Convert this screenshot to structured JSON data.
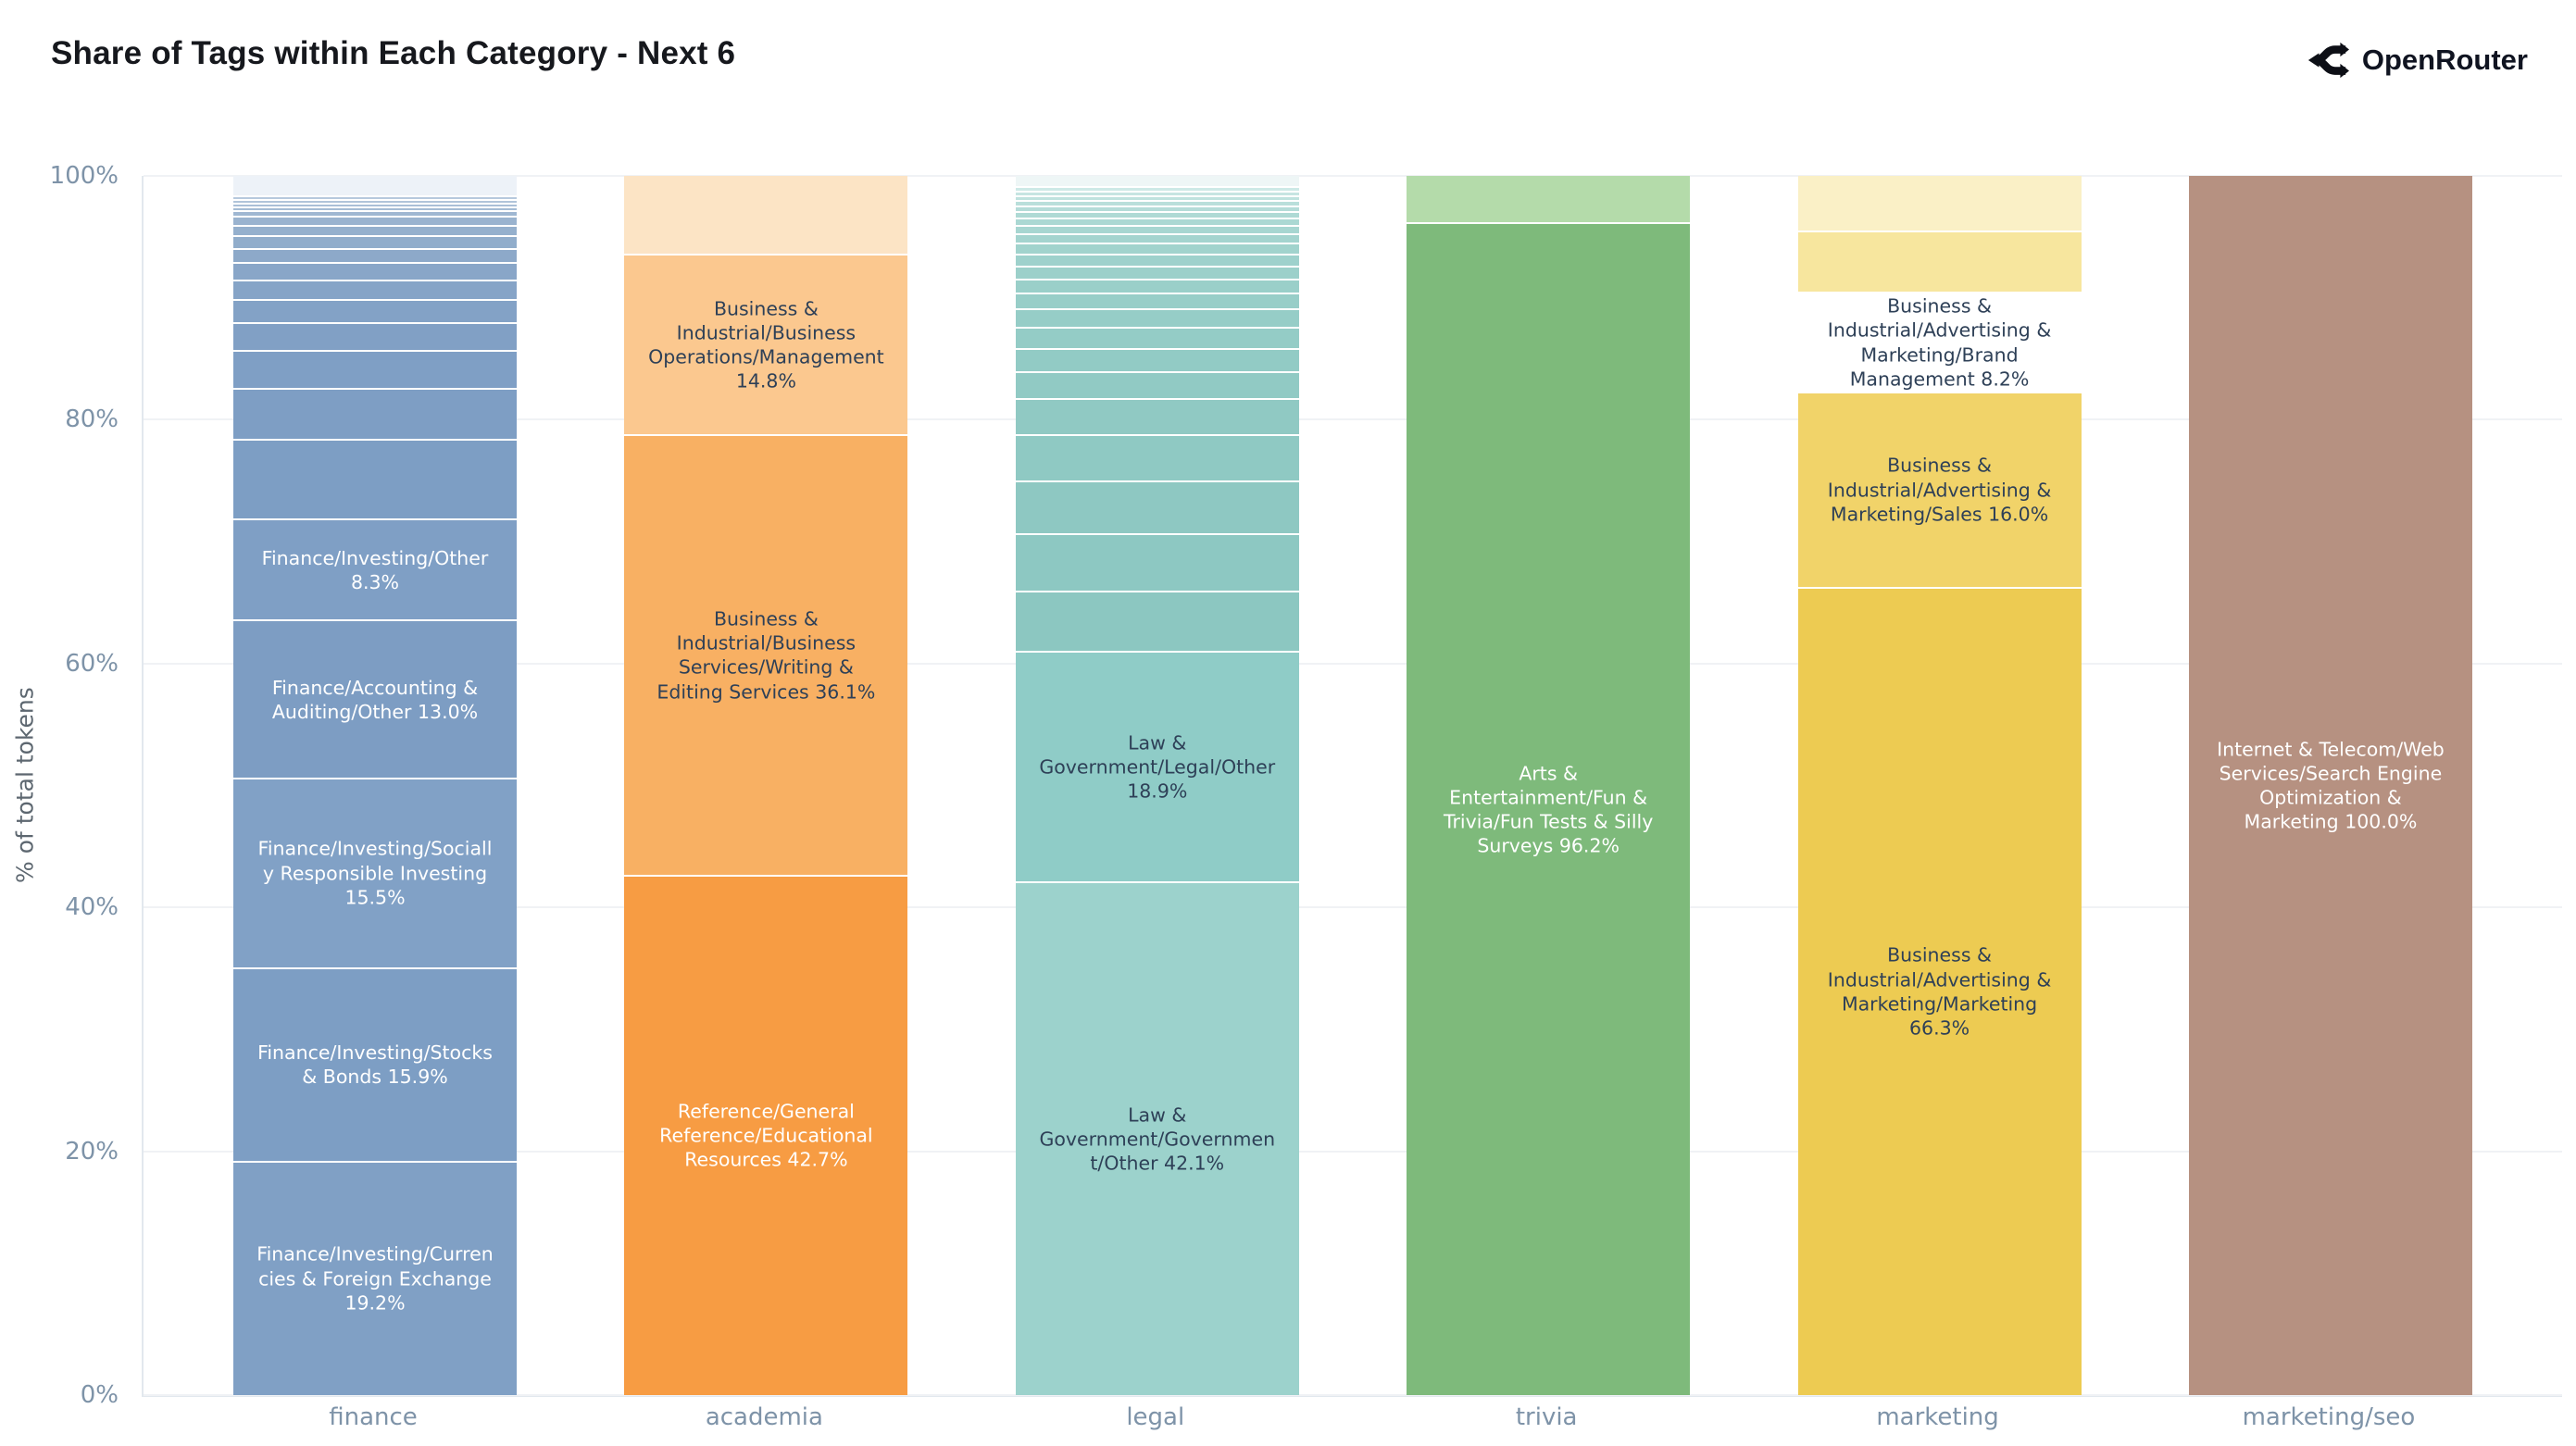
{
  "header": {
    "title": "Share of Tags within Each Category - Next 6",
    "brand": "OpenRouter"
  },
  "chart_data": {
    "type": "bar",
    "stacked": true,
    "normalized_percent": true,
    "title": "Share of Tags within Each Category - Next 6",
    "xlabel": "",
    "ylabel": "% of total tokens",
    "ylim": [
      0,
      100
    ],
    "grid": "horizontal",
    "legend": "none",
    "yticks": [
      "0%",
      "20%",
      "40%",
      "60%",
      "80%",
      "100%"
    ],
    "ytick_values": [
      0,
      20,
      40,
      60,
      80,
      100
    ],
    "categories": [
      "finance",
      "academia",
      "legal",
      "trivia",
      "marketing",
      "marketing/seo"
    ],
    "bars": [
      {
        "category": "finance",
        "segments": [
          {
            "v": 1.6,
            "c": "#edf2f8",
            "label": "",
            "text": ""
          },
          {
            "v": 0.3,
            "c": "#b7c9dd",
            "label": "",
            "text": ""
          },
          {
            "v": 0.3,
            "c": "#b0c4da",
            "label": "",
            "text": ""
          },
          {
            "v": 0.3,
            "c": "#aabfd7",
            "label": "",
            "text": ""
          },
          {
            "v": 0.3,
            "c": "#a4bbd4",
            "label": "",
            "text": ""
          },
          {
            "v": 0.5,
            "c": "#9fb7d2",
            "label": "",
            "text": ""
          },
          {
            "v": 0.7,
            "c": "#9ab3cf",
            "label": "",
            "text": ""
          },
          {
            "v": 0.9,
            "c": "#95b0cd",
            "label": "",
            "text": ""
          },
          {
            "v": 1.0,
            "c": "#91adcb",
            "label": "",
            "text": ""
          },
          {
            "v": 1.2,
            "c": "#8da9c9",
            "label": "",
            "text": ""
          },
          {
            "v": 1.4,
            "c": "#89a6c8",
            "label": "",
            "text": ""
          },
          {
            "v": 1.6,
            "c": "#86a4c7",
            "label": "",
            "text": ""
          },
          {
            "v": 1.9,
            "c": "#83a2c6",
            "label": "",
            "text": ""
          },
          {
            "v": 2.3,
            "c": "#81a0c5",
            "label": "",
            "text": ""
          },
          {
            "v": 3.1,
            "c": "#7f9fc5",
            "label": "",
            "text": ""
          },
          {
            "v": 4.2,
            "c": "#7e9ec4",
            "label": "",
            "text": ""
          },
          {
            "v": 6.5,
            "c": "#7d9ec4",
            "label": "",
            "text": ""
          },
          {
            "v": 8.3,
            "c": "#7f9fc5",
            "label": "Finance/Investing/Other 8.3%",
            "text": "#ffffff"
          },
          {
            "v": 13.0,
            "c": "#7d9dc3",
            "label": "Finance/Accounting & Auditing/Other 13.0%",
            "text": "#ffffff"
          },
          {
            "v": 15.5,
            "c": "#81a1c6",
            "label": "Finance/Investing/Socially Responsible Investing 15.5%",
            "text": "#ffffff"
          },
          {
            "v": 15.9,
            "c": "#7d9ec4",
            "label": "Finance/Investing/Stocks & Bonds 15.9%",
            "text": "#ffffff"
          },
          {
            "v": 19.2,
            "c": "#80a0c5",
            "label": "Finance/Investing/Currencies & Foreign Exchange 19.2%",
            "text": "#ffffff"
          }
        ]
      },
      {
        "category": "academia",
        "segments": [
          {
            "v": 6.4,
            "c": "#fce4c5",
            "label": "",
            "text": ""
          },
          {
            "v": 14.8,
            "c": "#fbc88f",
            "label": "Business & Industrial/Business Operations/Management 14.8%",
            "text": "#2e4057"
          },
          {
            "v": 36.1,
            "c": "#f8b063",
            "label": "Business & Industrial/Business Services/Writing & Editing Services 36.1%",
            "text": "#2e4057"
          },
          {
            "v": 42.7,
            "c": "#f79c43",
            "label": "Reference/General Reference/Educational Resources 42.7%",
            "text": "#ffffff"
          }
        ]
      },
      {
        "category": "legal",
        "segments": [
          {
            "v": 0.8,
            "c": "#eef6f6",
            "label": "",
            "text": ""
          },
          {
            "v": 0.4,
            "c": "#cde9e6",
            "label": "",
            "text": ""
          },
          {
            "v": 0.4,
            "c": "#c6e5e2",
            "label": "",
            "text": ""
          },
          {
            "v": 0.4,
            "c": "#bfe2de",
            "label": "",
            "text": ""
          },
          {
            "v": 0.4,
            "c": "#b9dfdb",
            "label": "",
            "text": ""
          },
          {
            "v": 0.5,
            "c": "#b4dcd8",
            "label": "",
            "text": ""
          },
          {
            "v": 0.5,
            "c": "#afdad5",
            "label": "",
            "text": ""
          },
          {
            "v": 0.6,
            "c": "#abd8d3",
            "label": "",
            "text": ""
          },
          {
            "v": 0.7,
            "c": "#a7d6d1",
            "label": "",
            "text": ""
          },
          {
            "v": 0.8,
            "c": "#a4d4cf",
            "label": "",
            "text": ""
          },
          {
            "v": 0.9,
            "c": "#a1d3cd",
            "label": "",
            "text": ""
          },
          {
            "v": 1.0,
            "c": "#9ed1cc",
            "label": "",
            "text": ""
          },
          {
            "v": 1.0,
            "c": "#9cd0ca",
            "label": "",
            "text": ""
          },
          {
            "v": 1.2,
            "c": "#9acfc9",
            "label": "",
            "text": ""
          },
          {
            "v": 1.3,
            "c": "#98cec8",
            "label": "",
            "text": ""
          },
          {
            "v": 1.5,
            "c": "#96cdc7",
            "label": "",
            "text": ""
          },
          {
            "v": 1.7,
            "c": "#94ccc6",
            "label": "",
            "text": ""
          },
          {
            "v": 1.9,
            "c": "#92cbc5",
            "label": "",
            "text": ""
          },
          {
            "v": 2.2,
            "c": "#91cac4",
            "label": "",
            "text": ""
          },
          {
            "v": 3.0,
            "c": "#90c9c3",
            "label": "",
            "text": ""
          },
          {
            "v": 3.8,
            "c": "#8fc9c3",
            "label": "",
            "text": ""
          },
          {
            "v": 4.3,
            "c": "#8ec8c2",
            "label": "",
            "text": ""
          },
          {
            "v": 4.7,
            "c": "#8dc8c2",
            "label": "",
            "text": ""
          },
          {
            "v": 5.0,
            "c": "#8cc7c1",
            "label": "",
            "text": ""
          },
          {
            "v": 18.9,
            "c": "#8fccc7",
            "label": "Law & Government/Legal/Other 18.9%",
            "text": "#2e4057"
          },
          {
            "v": 42.1,
            "c": "#9cd2cc",
            "label": "Law & Government/Government/Other 42.1%",
            "text": "#2e4057"
          }
        ]
      },
      {
        "category": "trivia",
        "segments": [
          {
            "v": 3.8,
            "c": "#b4dbaa",
            "label": "",
            "text": ""
          },
          {
            "v": 96.2,
            "c": "#7eba7b",
            "label": "Arts & Entertainment/Fun & Trivia/Fun Tests & Silly Surveys 96.2%",
            "text": "#ffffff"
          }
        ]
      },
      {
        "category": "marketing",
        "segments": [
          {
            "v": 4.5,
            "c": "#faf0c6",
            "label": "",
            "text": ""
          },
          {
            "v": 5.0,
            "c": "#f7e69e",
            "label": "",
            "text": ""
          },
          {
            "v": 8.2,
            "c": "#f4db80, ",
            "label": "Business & Industrial/Advertising & Marketing/Brand Management 8.2%",
            "text": "#2e4057"
          },
          {
            "v": 16.0,
            "c": "#f1d369",
            "label": "Business & Industrial/Advertising & Marketing/Sales 16.0%",
            "text": "#2e4057"
          },
          {
            "v": 66.3,
            "c": "#edcb52",
            "label": "Business & Industrial/Advertising & Marketing/Marketing 66.3%",
            "text": "#2e4057"
          }
        ]
      },
      {
        "category": "marketing/seo",
        "segments": [
          {
            "v": 100.0,
            "c": "#b69181",
            "label": "Internet & Telecom/Web Services/Search Engine Optimization & Marketing 100.0%",
            "text": "#ffffff"
          }
        ]
      }
    ]
  }
}
